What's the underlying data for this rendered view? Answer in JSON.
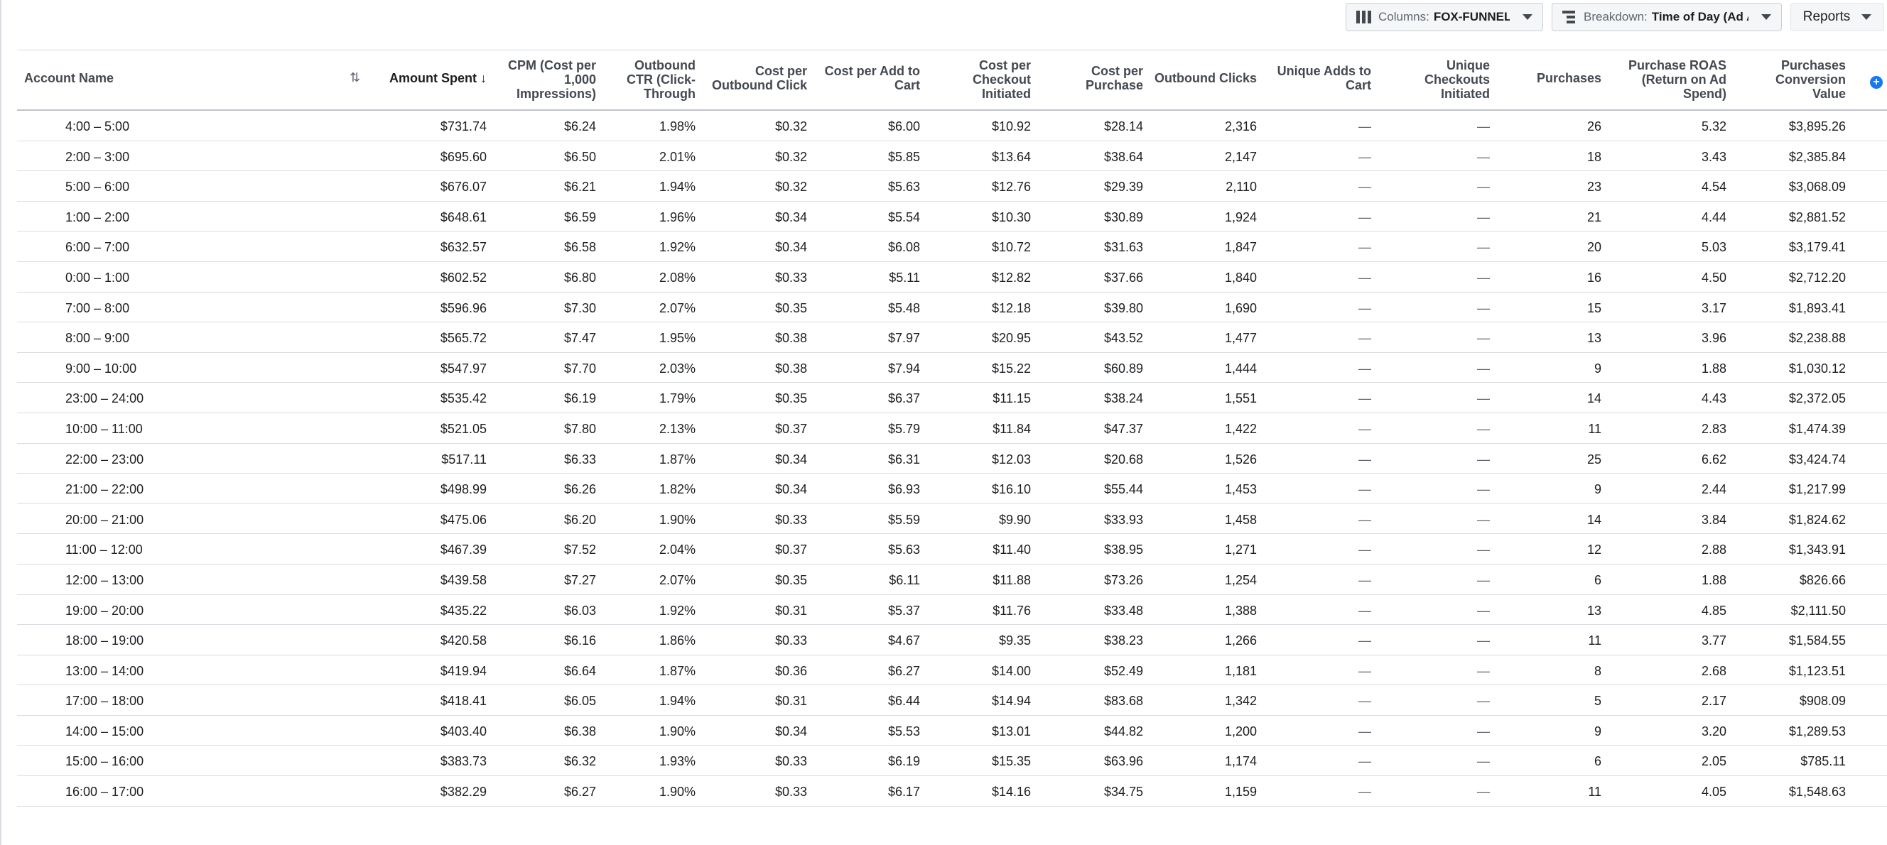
{
  "toolbar": {
    "columns_label": "Columns:",
    "columns_value": "FOX-FUNNELS",
    "breakdown_label": "Breakdown:",
    "breakdown_value": "Time of Day (Ad Account Time Zone)",
    "reports_label": "Reports"
  },
  "headers": [
    [
      "Account Name"
    ],
    [
      "Amount Spent ↓"
    ],
    [
      "CPM (Cost per",
      "1,000",
      "Impressions)"
    ],
    [
      "Outbound",
      "CTR (Click-",
      "Through"
    ],
    [
      "Cost per",
      "Outbound Click"
    ],
    [
      "Cost per Add to",
      "Cart"
    ],
    [
      "Cost per",
      "Checkout",
      "Initiated"
    ],
    [
      "Cost per",
      "Purchase"
    ],
    [
      "Outbound Clicks"
    ],
    [
      "Unique Adds to",
      "Cart"
    ],
    [
      "Unique",
      "Checkouts",
      "Initiated"
    ],
    [
      "Purchases"
    ],
    [
      "Purchase ROAS",
      "(Return on Ad",
      "Spend)"
    ],
    [
      "Purchases",
      "Conversion",
      "Value"
    ]
  ],
  "rows": [
    [
      "4:00 – 5:00",
      "$731.74",
      "$6.24",
      "1.98%",
      "$0.32",
      "$6.00",
      "$10.92",
      "$28.14",
      "2,316",
      "—",
      "—",
      "26",
      "5.32",
      "$3,895.26"
    ],
    [
      "2:00 – 3:00",
      "$695.60",
      "$6.50",
      "2.01%",
      "$0.32",
      "$5.85",
      "$13.64",
      "$38.64",
      "2,147",
      "—",
      "—",
      "18",
      "3.43",
      "$2,385.84"
    ],
    [
      "5:00 – 6:00",
      "$676.07",
      "$6.21",
      "1.94%",
      "$0.32",
      "$5.63",
      "$12.76",
      "$29.39",
      "2,110",
      "—",
      "—",
      "23",
      "4.54",
      "$3,068.09"
    ],
    [
      "1:00 – 2:00",
      "$648.61",
      "$6.59",
      "1.96%",
      "$0.34",
      "$5.54",
      "$10.30",
      "$30.89",
      "1,924",
      "—",
      "—",
      "21",
      "4.44",
      "$2,881.52"
    ],
    [
      "6:00 – 7:00",
      "$632.57",
      "$6.58",
      "1.92%",
      "$0.34",
      "$6.08",
      "$10.72",
      "$31.63",
      "1,847",
      "—",
      "—",
      "20",
      "5.03",
      "$3,179.41"
    ],
    [
      "0:00 – 1:00",
      "$602.52",
      "$6.80",
      "2.08%",
      "$0.33",
      "$5.11",
      "$12.82",
      "$37.66",
      "1,840",
      "—",
      "—",
      "16",
      "4.50",
      "$2,712.20"
    ],
    [
      "7:00 – 8:00",
      "$596.96",
      "$7.30",
      "2.07%",
      "$0.35",
      "$5.48",
      "$12.18",
      "$39.80",
      "1,690",
      "—",
      "—",
      "15",
      "3.17",
      "$1,893.41"
    ],
    [
      "8:00 – 9:00",
      "$565.72",
      "$7.47",
      "1.95%",
      "$0.38",
      "$7.97",
      "$20.95",
      "$43.52",
      "1,477",
      "—",
      "—",
      "13",
      "3.96",
      "$2,238.88"
    ],
    [
      "9:00 – 10:00",
      "$547.97",
      "$7.70",
      "2.03%",
      "$0.38",
      "$7.94",
      "$15.22",
      "$60.89",
      "1,444",
      "—",
      "—",
      "9",
      "1.88",
      "$1,030.12"
    ],
    [
      "23:00 – 24:00",
      "$535.42",
      "$6.19",
      "1.79%",
      "$0.35",
      "$6.37",
      "$11.15",
      "$38.24",
      "1,551",
      "—",
      "—",
      "14",
      "4.43",
      "$2,372.05"
    ],
    [
      "10:00 – 11:00",
      "$521.05",
      "$7.80",
      "2.13%",
      "$0.37",
      "$5.79",
      "$11.84",
      "$47.37",
      "1,422",
      "—",
      "—",
      "11",
      "2.83",
      "$1,474.39"
    ],
    [
      "22:00 – 23:00",
      "$517.11",
      "$6.33",
      "1.87%",
      "$0.34",
      "$6.31",
      "$12.03",
      "$20.68",
      "1,526",
      "—",
      "—",
      "25",
      "6.62",
      "$3,424.74"
    ],
    [
      "21:00 – 22:00",
      "$498.99",
      "$6.26",
      "1.82%",
      "$0.34",
      "$6.93",
      "$16.10",
      "$55.44",
      "1,453",
      "—",
      "—",
      "9",
      "2.44",
      "$1,217.99"
    ],
    [
      "20:00 – 21:00",
      "$475.06",
      "$6.20",
      "1.90%",
      "$0.33",
      "$5.59",
      "$9.90",
      "$33.93",
      "1,458",
      "—",
      "—",
      "14",
      "3.84",
      "$1,824.62"
    ],
    [
      "11:00 – 12:00",
      "$467.39",
      "$7.52",
      "2.04%",
      "$0.37",
      "$5.63",
      "$11.40",
      "$38.95",
      "1,271",
      "—",
      "—",
      "12",
      "2.88",
      "$1,343.91"
    ],
    [
      "12:00 – 13:00",
      "$439.58",
      "$7.27",
      "2.07%",
      "$0.35",
      "$6.11",
      "$11.88",
      "$73.26",
      "1,254",
      "—",
      "—",
      "6",
      "1.88",
      "$826.66"
    ],
    [
      "19:00 – 20:00",
      "$435.22",
      "$6.03",
      "1.92%",
      "$0.31",
      "$5.37",
      "$11.76",
      "$33.48",
      "1,388",
      "—",
      "—",
      "13",
      "4.85",
      "$2,111.50"
    ],
    [
      "18:00 – 19:00",
      "$420.58",
      "$6.16",
      "1.86%",
      "$0.33",
      "$4.67",
      "$9.35",
      "$38.23",
      "1,266",
      "—",
      "—",
      "11",
      "3.77",
      "$1,584.55"
    ],
    [
      "13:00 – 14:00",
      "$419.94",
      "$6.64",
      "1.87%",
      "$0.36",
      "$6.27",
      "$14.00",
      "$52.49",
      "1,181",
      "—",
      "—",
      "8",
      "2.68",
      "$1,123.51"
    ],
    [
      "17:00 – 18:00",
      "$418.41",
      "$6.05",
      "1.94%",
      "$0.31",
      "$6.44",
      "$14.94",
      "$83.68",
      "1,342",
      "—",
      "—",
      "5",
      "2.17",
      "$908.09"
    ],
    [
      "14:00 – 15:00",
      "$403.40",
      "$6.38",
      "1.90%",
      "$0.34",
      "$5.53",
      "$13.01",
      "$44.82",
      "1,200",
      "—",
      "—",
      "9",
      "3.20",
      "$1,289.53"
    ],
    [
      "15:00 – 16:00",
      "$383.73",
      "$6.32",
      "1.93%",
      "$0.33",
      "$6.19",
      "$15.35",
      "$63.96",
      "1,174",
      "—",
      "—",
      "6",
      "2.05",
      "$785.11"
    ],
    [
      "16:00 – 17:00",
      "$382.29",
      "$6.27",
      "1.90%",
      "$0.33",
      "$6.17",
      "$14.16",
      "$34.75",
      "1,159",
      "—",
      "—",
      "11",
      "4.05",
      "$1,548.63"
    ]
  ]
}
